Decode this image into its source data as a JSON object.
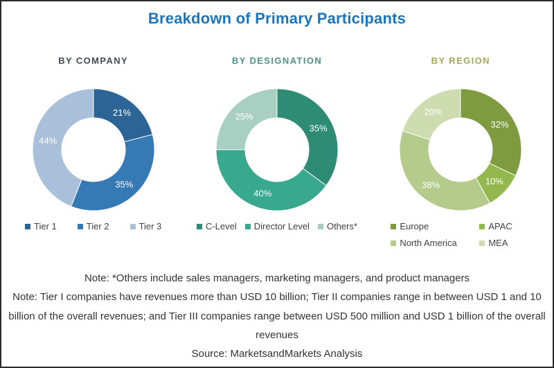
{
  "header": {
    "title": "Breakdown of Primary Participants",
    "title_color": "#1b75bc"
  },
  "chart_data": [
    {
      "type": "pie",
      "variant": "donut",
      "title": "BY COMPANY",
      "title_color": "#3d4c59",
      "categories": [
        "Tier 1",
        "Tier 2",
        "Tier 3"
      ],
      "values": [
        21,
        35,
        44
      ],
      "unit": "%",
      "colors": [
        "#2d6496",
        "#3579b5",
        "#a9bfda"
      ],
      "label_color": "#ffffff",
      "legend_position": "bottom",
      "legend_columns": 3,
      "start_angle_deg": 0,
      "direction": "clockwise"
    },
    {
      "type": "pie",
      "variant": "donut",
      "title": "BY DESIGNATION",
      "title_color": "#4f918c",
      "categories": [
        "C-Level",
        "Director Level",
        "Others*"
      ],
      "values": [
        35,
        40,
        25
      ],
      "unit": "%",
      "colors": [
        "#2e8c74",
        "#38a88f",
        "#a9cfc2"
      ],
      "label_color": "#ffffff",
      "legend_position": "bottom",
      "legend_columns": 3,
      "start_angle_deg": 0,
      "direction": "clockwise"
    },
    {
      "type": "pie",
      "variant": "donut",
      "title": "BY REGION",
      "title_color": "#9faa5c",
      "categories": [
        "Europe",
        "APAC",
        "North America",
        "MEA"
      ],
      "values": [
        32,
        10,
        38,
        20
      ],
      "unit": "%",
      "colors": [
        "#7e9b40",
        "#93b84d",
        "#b5cb8c",
        "#cedcb0"
      ],
      "label_color": "#ffffff",
      "legend_position": "bottom",
      "legend_columns": 2,
      "start_angle_deg": 0,
      "direction": "clockwise"
    }
  ],
  "notes": [
    "Note: *Others include sales managers, marketing managers, and product managers",
    "Note: Tier I companies have revenues more than USD 10 billion; Tier II companies range in between USD 1 and 10 billion of the overall revenues; and Tier III companies range between USD 500 million and USD 1 billion of the overall revenues",
    "Source: MarketsandMarkets Analysis"
  ]
}
